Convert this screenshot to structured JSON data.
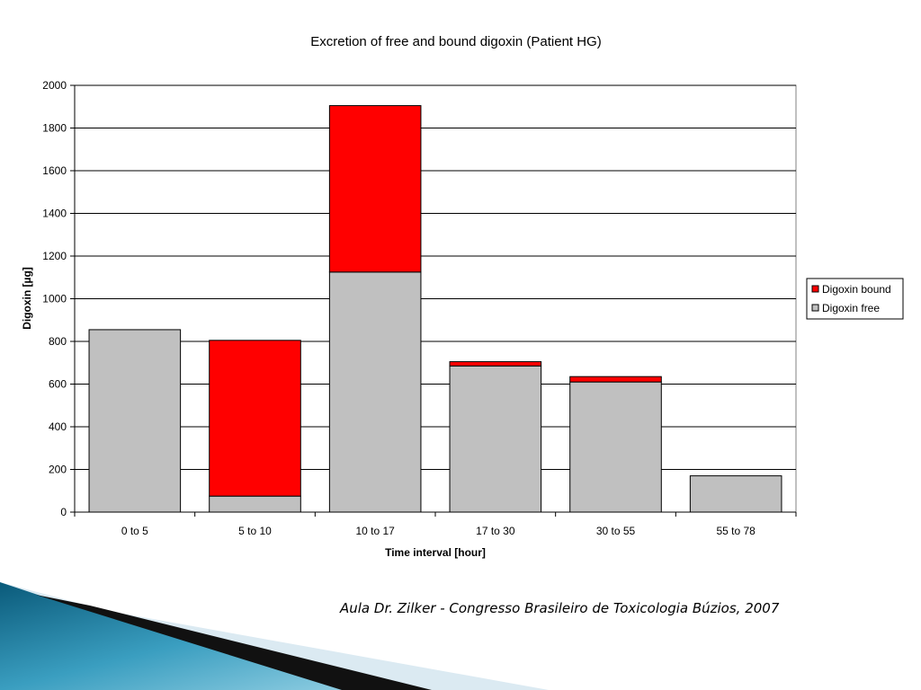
{
  "chart_data": {
    "type": "bar",
    "stacked": true,
    "title": "Excretion of free and bound digoxin (Patient HG)",
    "xlabel": "Time interval [hour]",
    "ylabel": "Digoxin [µg]",
    "categories": [
      "0 to 5",
      "5 to 10",
      "10 to 17",
      "17 to 30",
      "30 to 55",
      "55 to 78"
    ],
    "series": [
      {
        "name": "Digoxin free",
        "color": "#c0c0c0",
        "values": [
          855,
          75,
          1125,
          685,
          610,
          170
        ]
      },
      {
        "name": "Digoxin bound",
        "color": "#ff0000",
        "values": [
          0,
          730,
          780,
          20,
          25,
          0
        ]
      }
    ],
    "ylim": [
      0,
      2000
    ],
    "yticks": [
      0,
      200,
      400,
      600,
      800,
      1000,
      1200,
      1400,
      1600,
      1800,
      2000
    ],
    "grid": true,
    "legend_position": "right",
    "legend_order": [
      "Digoxin bound",
      "Digoxin free"
    ]
  },
  "footer": {
    "caption": "Aula Dr. Zilker - Congresso Brasileiro de Toxicologia Búzios, 2007"
  }
}
